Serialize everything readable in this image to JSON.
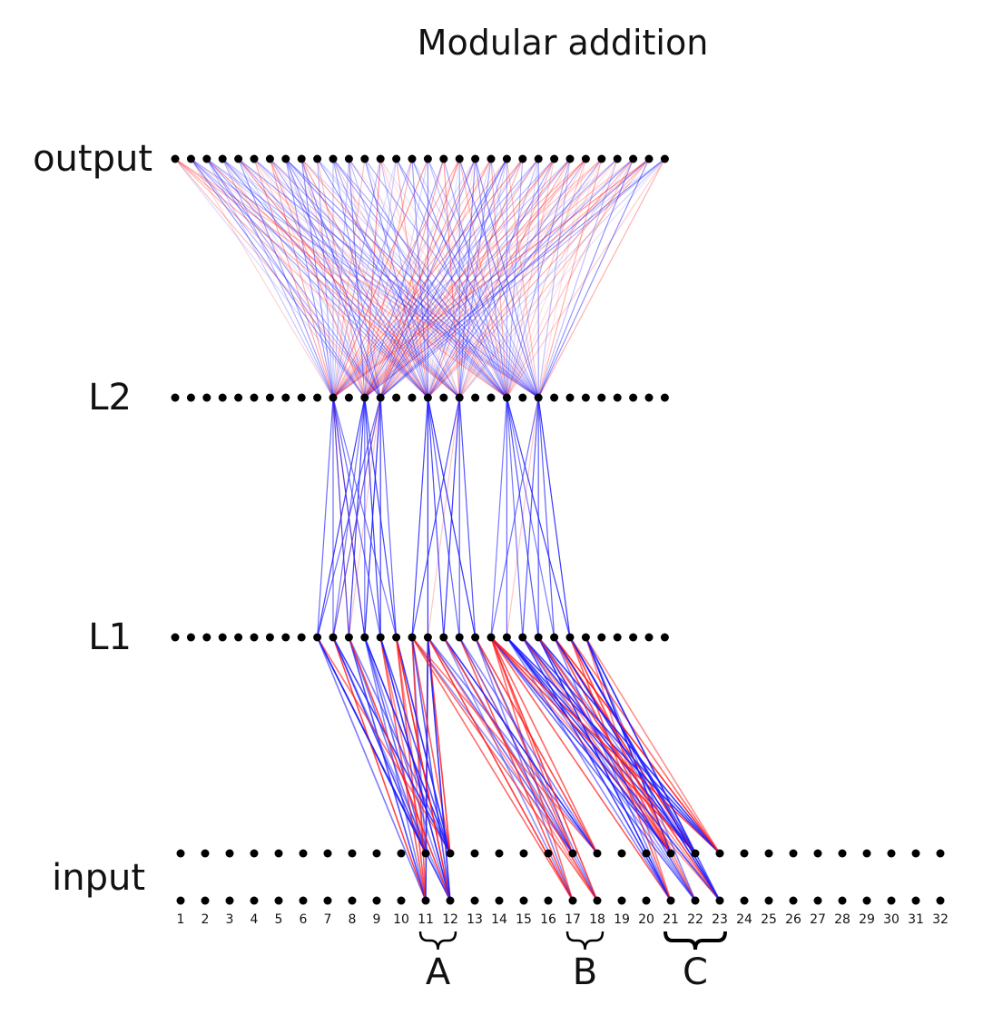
{
  "title": "Modular addition",
  "layer_labels": {
    "output": "output",
    "l2": "L2",
    "l1": "L1",
    "input": "input"
  },
  "input_index_labels": [
    "1",
    "2",
    "3",
    "4",
    "5",
    "6",
    "7",
    "8",
    "9",
    "10",
    "11",
    "12",
    "13",
    "14",
    "15",
    "16",
    "17",
    "18",
    "19",
    "20",
    "21",
    "22",
    "23",
    "24",
    "25",
    "26",
    "27",
    "28",
    "29",
    "30",
    "31",
    "32"
  ],
  "groups": [
    {
      "label": "A",
      "from": 11,
      "to": 12
    },
    {
      "label": "B",
      "from": 17,
      "to": 18
    },
    {
      "label": "C",
      "from": 21,
      "to": 23
    }
  ],
  "network": {
    "nodes_per_layer": 32,
    "active_l2": [
      10,
      12,
      13,
      16,
      18,
      21,
      23
    ],
    "active_l1": [
      9,
      10,
      11,
      12,
      13,
      14,
      15,
      16,
      17,
      18,
      19,
      20,
      21,
      22,
      23,
      24,
      25,
      26
    ]
  },
  "colors": {
    "positive": "#ff1a1a",
    "negative": "#1a1aff",
    "node": "#000000"
  }
}
